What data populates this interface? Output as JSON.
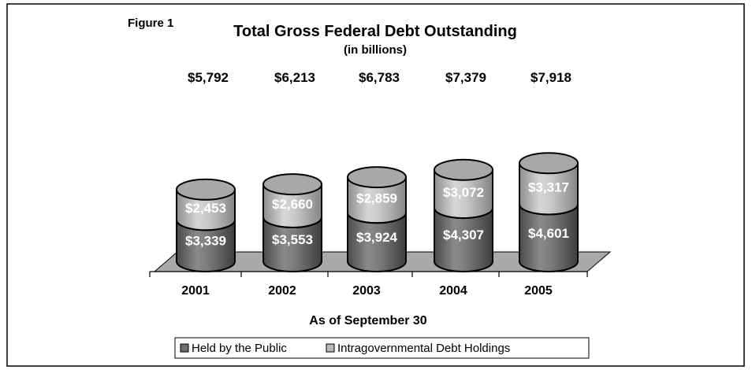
{
  "chart_data": {
    "type": "bar",
    "stacked": true,
    "style": "3d-cylinder",
    "figure_label": "Figure 1",
    "title": "Total Gross Federal Debt Outstanding",
    "subtitle": "(in billions)",
    "xlabel": "As of September 30",
    "ylabel": "",
    "categories": [
      "2001",
      "2002",
      "2003",
      "2004",
      "2005"
    ],
    "totals": [
      "$5,792",
      "$6,213",
      "$6,783",
      "$7,379",
      "$7,918"
    ],
    "series": [
      {
        "name": "Held by the Public",
        "values": [
          3339,
          3553,
          3924,
          4307,
          4601
        ],
        "labels": [
          "$3,339",
          "$3,553",
          "$3,924",
          "$4,307",
          "$4,601"
        ],
        "color": "#6e6e6e"
      },
      {
        "name": "Intragovernmental Debt Holdings",
        "values": [
          2453,
          2660,
          2859,
          3072,
          3317
        ],
        "labels": [
          "$2,453",
          "$2,660",
          "$2,859",
          "$3,072",
          "$3,317"
        ],
        "color": "#b8b8b8"
      }
    ],
    "ylim": [
      0,
      8000
    ],
    "grid": false,
    "legend": "bottom"
  }
}
